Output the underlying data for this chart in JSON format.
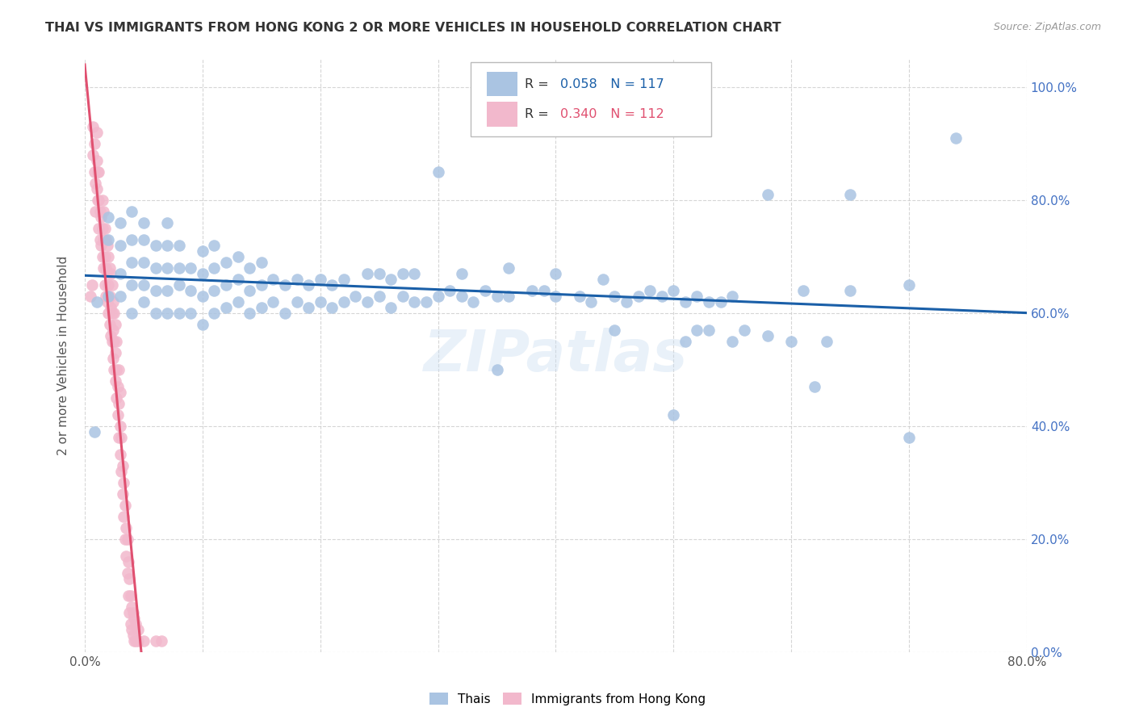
{
  "title": "THAI VS IMMIGRANTS FROM HONG KONG 2 OR MORE VEHICLES IN HOUSEHOLD CORRELATION CHART",
  "source": "Source: ZipAtlas.com",
  "ylabel": "2 or more Vehicles in Household",
  "watermark": "ZIPatlas",
  "xmin": 0.0,
  "xmax": 0.8,
  "ymin": 0.0,
  "ymax": 1.05,
  "ytick_labels": [
    "0.0%",
    "20.0%",
    "40.0%",
    "60.0%",
    "80.0%",
    "100.0%"
  ],
  "ytick_values": [
    0.0,
    0.2,
    0.4,
    0.6,
    0.8,
    1.0
  ],
  "xtick_values": [
    0.0,
    0.1,
    0.2,
    0.3,
    0.4,
    0.5,
    0.6,
    0.7,
    0.8
  ],
  "legend_labels": [
    "Thais",
    "Immigrants from Hong Kong"
  ],
  "blue_R": "0.058",
  "blue_N": "117",
  "pink_R": "0.340",
  "pink_N": "112",
  "blue_color": "#aac4e2",
  "pink_color": "#f2b8cc",
  "blue_line_color": "#1a5fa8",
  "pink_line_color": "#e05070",
  "blue_scatter": [
    [
      0.008,
      0.39
    ],
    [
      0.01,
      0.62
    ],
    [
      0.02,
      0.63
    ],
    [
      0.02,
      0.73
    ],
    [
      0.02,
      0.77
    ],
    [
      0.03,
      0.63
    ],
    [
      0.03,
      0.67
    ],
    [
      0.03,
      0.72
    ],
    [
      0.03,
      0.76
    ],
    [
      0.04,
      0.6
    ],
    [
      0.04,
      0.65
    ],
    [
      0.04,
      0.69
    ],
    [
      0.04,
      0.73
    ],
    [
      0.04,
      0.78
    ],
    [
      0.05,
      0.62
    ],
    [
      0.05,
      0.65
    ],
    [
      0.05,
      0.69
    ],
    [
      0.05,
      0.73
    ],
    [
      0.05,
      0.76
    ],
    [
      0.06,
      0.6
    ],
    [
      0.06,
      0.64
    ],
    [
      0.06,
      0.68
    ],
    [
      0.06,
      0.72
    ],
    [
      0.07,
      0.6
    ],
    [
      0.07,
      0.64
    ],
    [
      0.07,
      0.68
    ],
    [
      0.07,
      0.72
    ],
    [
      0.07,
      0.76
    ],
    [
      0.08,
      0.6
    ],
    [
      0.08,
      0.65
    ],
    [
      0.08,
      0.68
    ],
    [
      0.08,
      0.72
    ],
    [
      0.09,
      0.6
    ],
    [
      0.09,
      0.64
    ],
    [
      0.09,
      0.68
    ],
    [
      0.1,
      0.58
    ],
    [
      0.1,
      0.63
    ],
    [
      0.1,
      0.67
    ],
    [
      0.1,
      0.71
    ],
    [
      0.11,
      0.6
    ],
    [
      0.11,
      0.64
    ],
    [
      0.11,
      0.68
    ],
    [
      0.11,
      0.72
    ],
    [
      0.12,
      0.61
    ],
    [
      0.12,
      0.65
    ],
    [
      0.12,
      0.69
    ],
    [
      0.13,
      0.62
    ],
    [
      0.13,
      0.66
    ],
    [
      0.13,
      0.7
    ],
    [
      0.14,
      0.6
    ],
    [
      0.14,
      0.64
    ],
    [
      0.14,
      0.68
    ],
    [
      0.15,
      0.61
    ],
    [
      0.15,
      0.65
    ],
    [
      0.15,
      0.69
    ],
    [
      0.16,
      0.62
    ],
    [
      0.16,
      0.66
    ],
    [
      0.17,
      0.6
    ],
    [
      0.17,
      0.65
    ],
    [
      0.18,
      0.62
    ],
    [
      0.18,
      0.66
    ],
    [
      0.19,
      0.61
    ],
    [
      0.19,
      0.65
    ],
    [
      0.2,
      0.62
    ],
    [
      0.2,
      0.66
    ],
    [
      0.21,
      0.61
    ],
    [
      0.21,
      0.65
    ],
    [
      0.22,
      0.62
    ],
    [
      0.22,
      0.66
    ],
    [
      0.23,
      0.63
    ],
    [
      0.24,
      0.62
    ],
    [
      0.24,
      0.67
    ],
    [
      0.25,
      0.63
    ],
    [
      0.25,
      0.67
    ],
    [
      0.26,
      0.61
    ],
    [
      0.26,
      0.66
    ],
    [
      0.27,
      0.63
    ],
    [
      0.27,
      0.67
    ],
    [
      0.28,
      0.62
    ],
    [
      0.28,
      0.67
    ],
    [
      0.29,
      0.62
    ],
    [
      0.3,
      0.85
    ],
    [
      0.3,
      0.63
    ],
    [
      0.31,
      0.64
    ],
    [
      0.32,
      0.63
    ],
    [
      0.32,
      0.67
    ],
    [
      0.33,
      0.62
    ],
    [
      0.34,
      0.64
    ],
    [
      0.35,
      0.5
    ],
    [
      0.35,
      0.63
    ],
    [
      0.36,
      0.63
    ],
    [
      0.36,
      0.68
    ],
    [
      0.38,
      0.64
    ],
    [
      0.39,
      0.64
    ],
    [
      0.4,
      0.93
    ],
    [
      0.4,
      0.63
    ],
    [
      0.4,
      0.67
    ],
    [
      0.42,
      0.63
    ],
    [
      0.43,
      0.62
    ],
    [
      0.44,
      0.66
    ],
    [
      0.45,
      0.57
    ],
    [
      0.45,
      0.63
    ],
    [
      0.46,
      0.62
    ],
    [
      0.47,
      0.63
    ],
    [
      0.48,
      0.64
    ],
    [
      0.49,
      0.63
    ],
    [
      0.5,
      0.64
    ],
    [
      0.5,
      0.42
    ],
    [
      0.51,
      0.55
    ],
    [
      0.51,
      0.62
    ],
    [
      0.52,
      0.57
    ],
    [
      0.52,
      0.63
    ],
    [
      0.53,
      0.62
    ],
    [
      0.53,
      0.57
    ],
    [
      0.54,
      0.62
    ],
    [
      0.55,
      0.55
    ],
    [
      0.55,
      0.63
    ],
    [
      0.56,
      0.57
    ],
    [
      0.58,
      0.81
    ],
    [
      0.58,
      0.56
    ],
    [
      0.6,
      0.55
    ],
    [
      0.61,
      0.64
    ],
    [
      0.62,
      0.47
    ],
    [
      0.63,
      0.55
    ],
    [
      0.65,
      0.81
    ],
    [
      0.65,
      0.64
    ],
    [
      0.7,
      0.38
    ],
    [
      0.7,
      0.65
    ],
    [
      0.74,
      0.91
    ]
  ],
  "pink_scatter": [
    [
      0.005,
      0.63
    ],
    [
      0.006,
      0.65
    ],
    [
      0.007,
      0.88
    ],
    [
      0.007,
      0.93
    ],
    [
      0.008,
      0.85
    ],
    [
      0.008,
      0.9
    ],
    [
      0.009,
      0.78
    ],
    [
      0.009,
      0.83
    ],
    [
      0.01,
      0.82
    ],
    [
      0.01,
      0.87
    ],
    [
      0.01,
      0.92
    ],
    [
      0.011,
      0.8
    ],
    [
      0.011,
      0.85
    ],
    [
      0.012,
      0.75
    ],
    [
      0.012,
      0.8
    ],
    [
      0.012,
      0.85
    ],
    [
      0.013,
      0.73
    ],
    [
      0.013,
      0.78
    ],
    [
      0.014,
      0.72
    ],
    [
      0.014,
      0.77
    ],
    [
      0.015,
      0.7
    ],
    [
      0.015,
      0.75
    ],
    [
      0.015,
      0.8
    ],
    [
      0.016,
      0.68
    ],
    [
      0.016,
      0.73
    ],
    [
      0.016,
      0.78
    ],
    [
      0.017,
      0.65
    ],
    [
      0.017,
      0.7
    ],
    [
      0.017,
      0.75
    ],
    [
      0.018,
      0.63
    ],
    [
      0.018,
      0.68
    ],
    [
      0.018,
      0.73
    ],
    [
      0.019,
      0.62
    ],
    [
      0.019,
      0.67
    ],
    [
      0.019,
      0.72
    ],
    [
      0.02,
      0.6
    ],
    [
      0.02,
      0.65
    ],
    [
      0.02,
      0.7
    ],
    [
      0.021,
      0.58
    ],
    [
      0.021,
      0.63
    ],
    [
      0.021,
      0.68
    ],
    [
      0.022,
      0.56
    ],
    [
      0.022,
      0.61
    ],
    [
      0.022,
      0.67
    ],
    [
      0.023,
      0.55
    ],
    [
      0.023,
      0.6
    ],
    [
      0.023,
      0.65
    ],
    [
      0.024,
      0.52
    ],
    [
      0.024,
      0.57
    ],
    [
      0.024,
      0.62
    ],
    [
      0.025,
      0.5
    ],
    [
      0.025,
      0.55
    ],
    [
      0.025,
      0.6
    ],
    [
      0.026,
      0.48
    ],
    [
      0.026,
      0.53
    ],
    [
      0.026,
      0.58
    ],
    [
      0.027,
      0.45
    ],
    [
      0.027,
      0.5
    ],
    [
      0.027,
      0.55
    ],
    [
      0.028,
      0.42
    ],
    [
      0.028,
      0.47
    ],
    [
      0.029,
      0.38
    ],
    [
      0.029,
      0.44
    ],
    [
      0.029,
      0.5
    ],
    [
      0.03,
      0.35
    ],
    [
      0.03,
      0.4
    ],
    [
      0.03,
      0.46
    ],
    [
      0.031,
      0.32
    ],
    [
      0.031,
      0.38
    ],
    [
      0.032,
      0.28
    ],
    [
      0.032,
      0.33
    ],
    [
      0.033,
      0.24
    ],
    [
      0.033,
      0.3
    ],
    [
      0.034,
      0.2
    ],
    [
      0.034,
      0.26
    ],
    [
      0.035,
      0.17
    ],
    [
      0.035,
      0.22
    ],
    [
      0.036,
      0.14
    ],
    [
      0.036,
      0.2
    ],
    [
      0.037,
      0.1
    ],
    [
      0.037,
      0.16
    ],
    [
      0.038,
      0.07
    ],
    [
      0.038,
      0.13
    ],
    [
      0.039,
      0.05
    ],
    [
      0.039,
      0.1
    ],
    [
      0.04,
      0.04
    ],
    [
      0.04,
      0.08
    ],
    [
      0.041,
      0.03
    ],
    [
      0.041,
      0.07
    ],
    [
      0.042,
      0.02
    ],
    [
      0.042,
      0.06
    ],
    [
      0.043,
      0.02
    ],
    [
      0.043,
      0.05
    ],
    [
      0.045,
      0.02
    ],
    [
      0.045,
      0.04
    ],
    [
      0.05,
      0.02
    ],
    [
      0.06,
      0.02
    ],
    [
      0.065,
      0.02
    ]
  ]
}
